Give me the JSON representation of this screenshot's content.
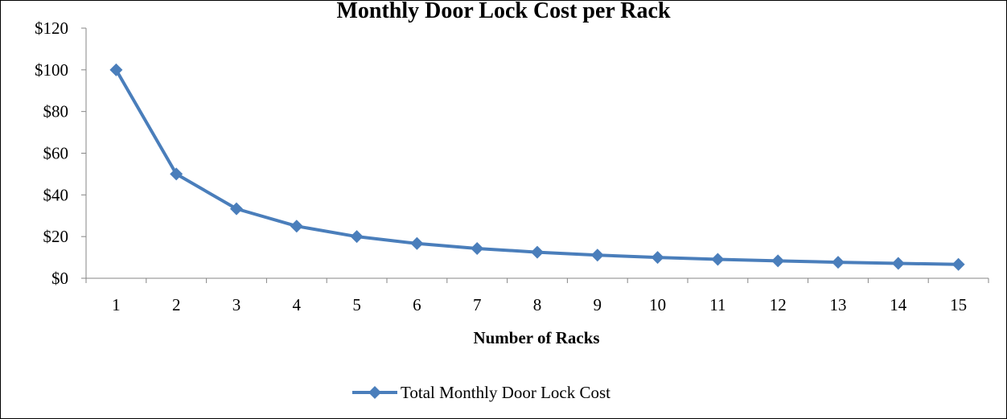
{
  "chart_data": {
    "type": "line",
    "title": "Monthly Door Lock Cost per Rack",
    "xlabel": "Number of Racks",
    "ylabel": "",
    "categories": [
      "1",
      "2",
      "3",
      "4",
      "5",
      "6",
      "7",
      "8",
      "9",
      "10",
      "11",
      "12",
      "13",
      "14",
      "15"
    ],
    "series": [
      {
        "name": "Total Monthly Door Lock Cost",
        "values": [
          100,
          50,
          33.33,
          25,
          20,
          16.67,
          14.29,
          12.5,
          11.11,
          10,
          9.09,
          8.33,
          7.69,
          7.14,
          6.67
        ],
        "color": "#4a7ebb"
      }
    ],
    "ylim": [
      0,
      120
    ],
    "ytick_values": [
      0,
      20,
      40,
      60,
      80,
      100,
      120
    ],
    "ytick_labels": [
      "$0",
      "$20",
      "$40",
      "$60",
      "$80",
      "$100",
      "$120"
    ],
    "grid": false,
    "legend_position": "bottom",
    "marker": "diamond"
  }
}
